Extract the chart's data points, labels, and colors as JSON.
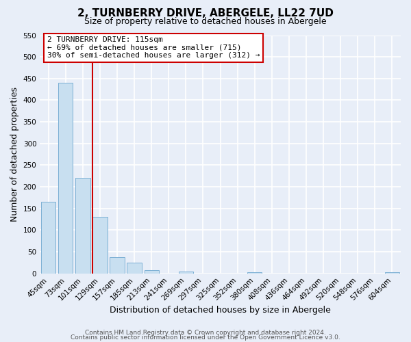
{
  "title": "2, TURNBERRY DRIVE, ABERGELE, LL22 7UD",
  "subtitle": "Size of property relative to detached houses in Abergele",
  "xlabel": "Distribution of detached houses by size in Abergele",
  "ylabel": "Number of detached properties",
  "bar_labels": [
    "45sqm",
    "73sqm",
    "101sqm",
    "129sqm",
    "157sqm",
    "185sqm",
    "213sqm",
    "241sqm",
    "269sqm",
    "297sqm",
    "325sqm",
    "352sqm",
    "380sqm",
    "408sqm",
    "436sqm",
    "464sqm",
    "492sqm",
    "520sqm",
    "548sqm",
    "576sqm",
    "604sqm"
  ],
  "bar_values": [
    165,
    440,
    220,
    130,
    37,
    25,
    8,
    0,
    5,
    0,
    0,
    0,
    2,
    0,
    0,
    0,
    0,
    0,
    0,
    0,
    2
  ],
  "bar_color": "#c8dff0",
  "bar_edge_color": "#7bafd4",
  "property_line_x": 2.57,
  "property_label": "2 TURNBERRY DRIVE: 115sqm",
  "annotation_line1": "← 69% of detached houses are smaller (715)",
  "annotation_line2": "30% of semi-detached houses are larger (312) →",
  "annotation_box_color": "#ffffff",
  "annotation_box_edge_color": "#cc0000",
  "vline_color": "#cc0000",
  "ylim": [
    0,
    550
  ],
  "yticks": [
    0,
    50,
    100,
    150,
    200,
    250,
    300,
    350,
    400,
    450,
    500,
    550
  ],
  "footer_line1": "Contains HM Land Registry data © Crown copyright and database right 2024.",
  "footer_line2": "Contains public sector information licensed under the Open Government Licence v3.0.",
  "bg_color": "#e8eef8",
  "grid_color": "#ffffff",
  "title_fontsize": 11,
  "subtitle_fontsize": 9,
  "axis_label_fontsize": 9,
  "tick_fontsize": 7.5,
  "footer_fontsize": 6.5
}
